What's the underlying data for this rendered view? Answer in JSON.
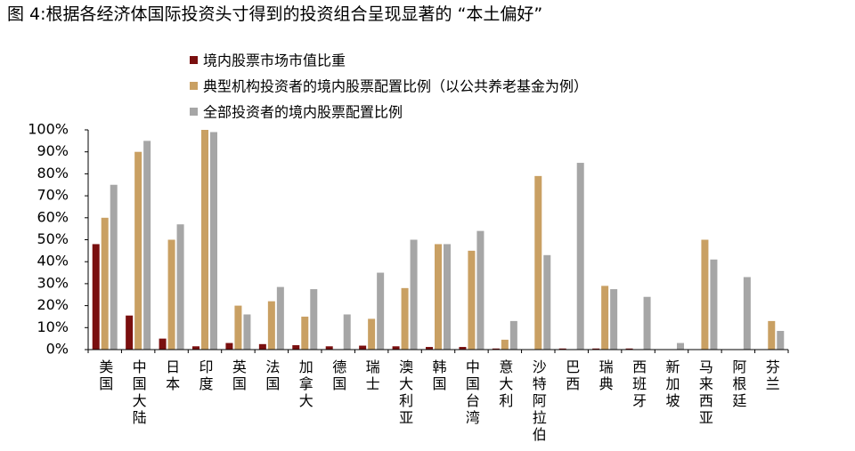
{
  "chart_data": {
    "type": "bar",
    "title": "图 4:根据各经济体国际投资头寸得到的投资组合呈现显著的 “本土偏好”",
    "categories": [
      "美国",
      "中国大陆",
      "日本",
      "印度",
      "英国",
      "法国",
      "加拿大",
      "德国",
      "瑞士",
      "澳大利亚",
      "韩国",
      "中国台湾",
      "意大利",
      "沙特阿拉伯",
      "巴西",
      "瑞典",
      "西班牙",
      "新加坡",
      "马来西亚",
      "阿根廷",
      "芬兰"
    ],
    "series": [
      {
        "name": "境内股票市场市值比重",
        "color": "#7a0f0f",
        "values": [
          48,
          15.5,
          5,
          1.5,
          3,
          2.5,
          2,
          1.5,
          1.8,
          1.5,
          1.2,
          1.2,
          0.5,
          null,
          0.5,
          0.5,
          0.5,
          null,
          null,
          null,
          null
        ]
      },
      {
        "name": "典型机构投资者的境内股票配置比例（以公共养老基金为例）",
        "color": "#c9a063",
        "values": [
          60,
          90,
          50,
          100,
          20,
          22,
          15,
          null,
          14,
          28,
          48,
          45,
          4.5,
          79,
          null,
          29,
          null,
          null,
          50,
          null,
          13
        ]
      },
      {
        "name": "全部投资者的境内股票配置比例",
        "color": "#a6a6a6",
        "values": [
          75,
          95,
          57,
          99,
          16,
          28.5,
          27.5,
          16,
          35,
          50,
          48,
          54,
          13,
          43,
          85,
          27.5,
          24,
          3,
          41,
          33,
          8.5
        ]
      }
    ],
    "ylim": [
      0,
      100
    ],
    "yticks": [
      {
        "value": 0,
        "label": "0%"
      },
      {
        "value": 10,
        "label": "10%"
      },
      {
        "value": 20,
        "label": "20%"
      },
      {
        "value": 30,
        "label": "30%"
      },
      {
        "value": 40,
        "label": "40%"
      },
      {
        "value": 50,
        "label": "50%"
      },
      {
        "value": 60,
        "label": "60%"
      },
      {
        "value": 70,
        "label": "70%"
      },
      {
        "value": 80,
        "label": "80%"
      },
      {
        "value": 90,
        "label": "90%"
      },
      {
        "value": 100,
        "label": "100%"
      }
    ],
    "grid": false
  }
}
